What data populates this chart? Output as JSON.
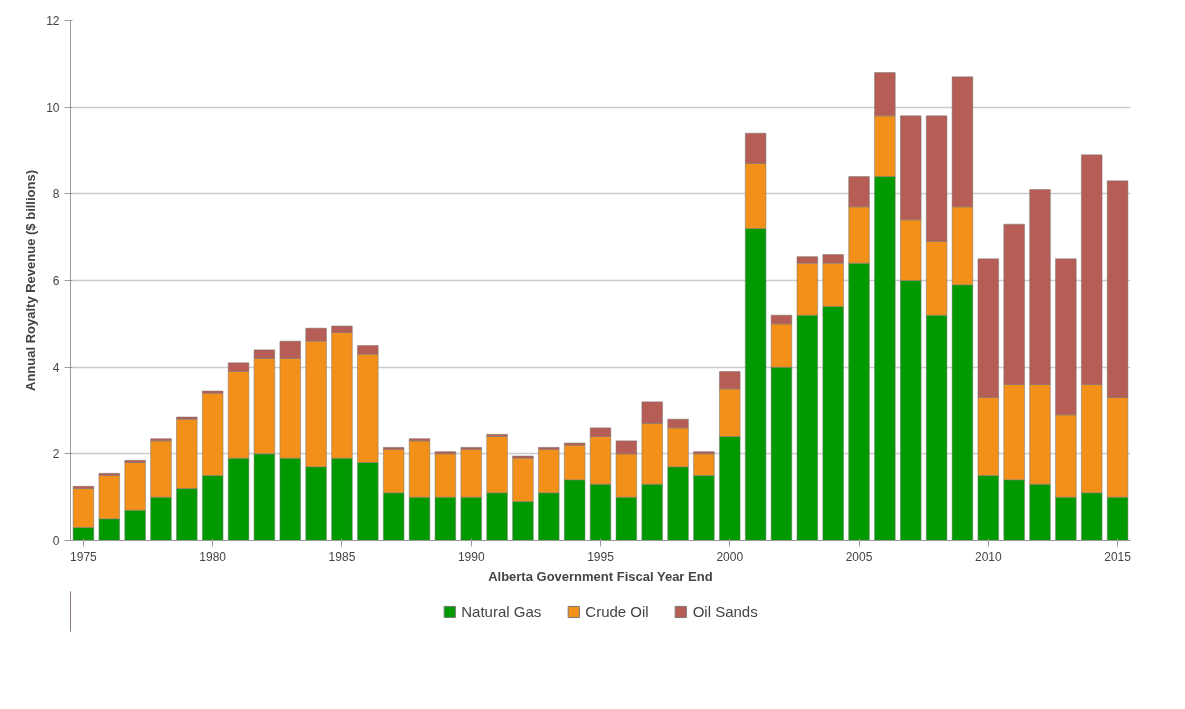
{
  "chart_data": {
    "type": "bar",
    "stacked": true,
    "xlabel": "Alberta Government Fiscal Year End",
    "ylabel": "Annual Royalty Revenue ($ billions)",
    "x": [
      1975,
      1976,
      1977,
      1978,
      1979,
      1980,
      1981,
      1982,
      1983,
      1984,
      1985,
      1986,
      1987,
      1988,
      1989,
      1990,
      1991,
      1992,
      1993,
      1994,
      1995,
      1996,
      1997,
      1998,
      1999,
      2000,
      2001,
      2002,
      2003,
      2004,
      2005,
      2006,
      2007,
      2008,
      2009,
      2010,
      2011,
      2012,
      2013,
      2014,
      2015
    ],
    "series": [
      {
        "name": "Natural Gas",
        "color": "#009a00",
        "values": [
          0.3,
          0.5,
          0.7,
          1.0,
          1.2,
          1.5,
          1.9,
          2.0,
          1.9,
          1.7,
          1.9,
          1.8,
          1.1,
          1.0,
          1.0,
          1.0,
          1.1,
          0.9,
          1.1,
          1.4,
          1.3,
          1.0,
          1.3,
          1.7,
          1.5,
          2.4,
          7.2,
          4.0,
          5.2,
          5.4,
          6.4,
          8.4,
          6.0,
          5.2,
          5.9,
          1.5,
          1.4,
          1.3,
          1.0,
          1.1,
          1.0
        ]
      },
      {
        "name": "Crude Oil",
        "color": "#f39019",
        "values": [
          0.9,
          1.0,
          1.1,
          1.3,
          1.6,
          1.9,
          2.0,
          2.2,
          2.3,
          2.9,
          2.9,
          2.5,
          1.0,
          1.3,
          1.0,
          1.1,
          1.3,
          1.0,
          1.0,
          0.8,
          1.1,
          1.0,
          1.4,
          0.9,
          0.5,
          1.1,
          1.5,
          1.0,
          1.2,
          1.0,
          1.3,
          1.4,
          1.4,
          1.7,
          1.8,
          1.8,
          2.2,
          2.3,
          1.9,
          2.5,
          2.3
        ]
      },
      {
        "name": "Oil Sands",
        "color": "#b65d55",
        "values": [
          0.05,
          0.05,
          0.05,
          0.05,
          0.05,
          0.05,
          0.2,
          0.2,
          0.4,
          0.3,
          0.15,
          0.2,
          0.05,
          0.05,
          0.05,
          0.05,
          0.05,
          0.05,
          0.05,
          0.05,
          0.2,
          0.3,
          0.5,
          0.2,
          0.05,
          0.4,
          0.7,
          0.2,
          0.15,
          0.2,
          0.7,
          1.0,
          2.4,
          2.9,
          3.0,
          3.2,
          3.7,
          4.5,
          3.6,
          5.3,
          5.0
        ]
      }
    ],
    "xlim": [
      1974.5,
      2015.5
    ],
    "xticks": [
      1975,
      1980,
      1985,
      1990,
      1995,
      2000,
      2005,
      2010,
      2015
    ],
    "ylim": [
      0,
      12
    ],
    "yticks": [
      0,
      2,
      4,
      6,
      8,
      10,
      12
    ],
    "grid": "y",
    "legend": "bottom"
  }
}
